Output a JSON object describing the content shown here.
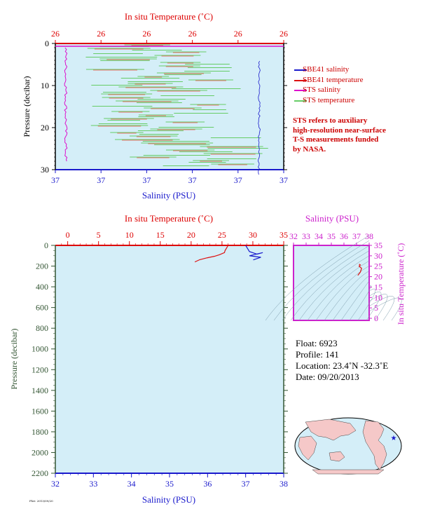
{
  "chart_data": [
    {
      "id": "top",
      "type": "line",
      "top_axis_title": "In situ Temperature (˚C)",
      "top_ticks": [
        "26",
        "26",
        "26",
        "26",
        "26",
        "26"
      ],
      "bottom_axis_title": "Salinity (PSU)",
      "bottom_ticks": [
        "37",
        "37",
        "37",
        "37",
        "37",
        "37"
      ],
      "left_axis_title": "Pressure (decibar)",
      "left_ticks": [
        "0",
        "10",
        "20",
        "30"
      ],
      "y_range": [
        0,
        30
      ],
      "legend": [
        {
          "label": "SBE41 salinity",
          "color": "#1a1acc"
        },
        {
          "label": "SBE41 temperature",
          "color": "#dd1111"
        },
        {
          "label": "STS salinity",
          "color": "#dd11cc"
        },
        {
          "label": "STS temperature",
          "color": "#66cc66"
        }
      ],
      "note_lines": [
        "STS refers to auxiliary",
        "high-resolution near-surface",
        "T-S measurements funded",
        "by NASA."
      ]
    },
    {
      "id": "main",
      "type": "line",
      "top_axis_title": "In situ Temperature (˚C)",
      "top_ticks": [
        "0",
        "5",
        "10",
        "15",
        "20",
        "25",
        "30",
        "35"
      ],
      "x_temp_range": [
        -2,
        35
      ],
      "bottom_axis_title": "Salinity (PSU)",
      "bottom_ticks": [
        "32",
        "33",
        "34",
        "35",
        "36",
        "37",
        "38"
      ],
      "x_sal_range": [
        32,
        38
      ],
      "left_axis_title": "Pressure (decibar)",
      "left_ticks": [
        "0",
        "200",
        "400",
        "600",
        "800",
        "1000",
        "1200",
        "1400",
        "1600",
        "1800",
        "2000",
        "2200"
      ],
      "y_range": [
        0,
        2200
      ],
      "temperature_profile": [
        [
          20.6,
          160
        ],
        [
          21.4,
          138
        ],
        [
          22.6,
          120
        ],
        [
          23.8,
          105
        ],
        [
          24.6,
          90
        ],
        [
          25.4,
          70
        ],
        [
          25.5,
          50
        ],
        [
          25.8,
          20
        ],
        [
          26.0,
          0
        ]
      ],
      "salinity_profile": [
        [
          37.0,
          0
        ],
        [
          37.05,
          30
        ],
        [
          37.1,
          60
        ],
        [
          37.3,
          85
        ],
        [
          37.45,
          70
        ],
        [
          37.1,
          100
        ],
        [
          37.4,
          115
        ],
        [
          37.2,
          140
        ]
      ]
    },
    {
      "id": "ts",
      "type": "scatter",
      "top_axis_title": "Salinity (PSU)",
      "top_ticks": [
        "32",
        "33",
        "34",
        "35",
        "36",
        "37",
        "38"
      ],
      "x_range": [
        32,
        38
      ],
      "right_axis_title": "In situ Temperature (˚C)",
      "right_ticks": [
        "0",
        "5",
        "10",
        "15",
        "20",
        "25",
        "30",
        "35"
      ],
      "y_range": [
        -1,
        35
      ],
      "profile": [
        [
          37.1,
          20.6
        ],
        [
          37.3,
          22.2
        ],
        [
          37.4,
          24.0
        ],
        [
          37.2,
          25.0
        ],
        [
          37.3,
          25.6
        ],
        [
          37.2,
          26.0
        ]
      ]
    }
  ],
  "float_info": {
    "float": "Float:  6923",
    "profile": "Profile:  141",
    "location": "Location:  23.4˚N  -32.3˚E",
    "date": "Date:  09/20/2013"
  },
  "footer": "Plot: 2013/09/20"
}
